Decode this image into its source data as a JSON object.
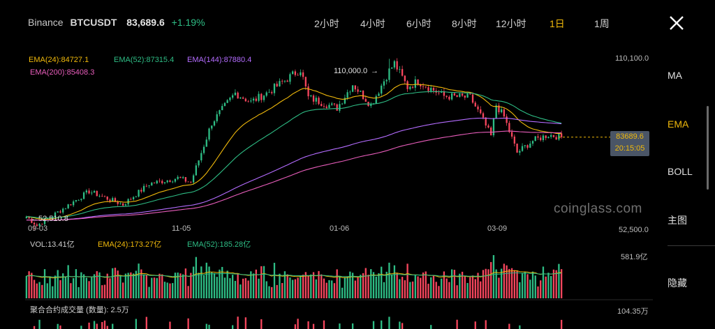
{
  "header": {
    "exchange": "Binance",
    "pair": "BTCUSDT",
    "price": "83,689.6",
    "change": "+1.19%",
    "intervals": [
      {
        "label": "2小时",
        "active": false
      },
      {
        "label": "4小时",
        "active": false
      },
      {
        "label": "6小时",
        "active": false
      },
      {
        "label": "8小时",
        "active": false
      },
      {
        "label": "12小时",
        "active": false
      },
      {
        "label": "1日",
        "active": true
      },
      {
        "label": "1周",
        "active": false
      }
    ],
    "close_icon": "close-icon"
  },
  "main_legend": {
    "ema24": "EMA(24):84727.1",
    "ema52": "EMA(52):87315.4",
    "ema144": "EMA(144):87880.4",
    "ema200": "EMA(200):85408.3"
  },
  "price_axis": {
    "top": "110,100.0",
    "bottom": "52,500.0"
  },
  "annotations": {
    "high": "110,000.0",
    "low": "52,510.8"
  },
  "last_price": {
    "price": "83689.6",
    "countdown": "20:15:05"
  },
  "date_labels": [
    "09-03",
    "11-05",
    "01-06",
    "03-09"
  ],
  "watermark": "coinglass.com",
  "volume_legend": {
    "vol": "VOL:13.41亿",
    "ema24": "EMA(24):173.27亿",
    "ema52": "EMA(52):185.28亿",
    "axis_top": "581.9亿"
  },
  "oi_legend": {
    "label": "聚合合约成交量 (数量): 2.5万",
    "axis": "104.35万"
  },
  "side_menu": [
    {
      "label": "MA",
      "active": false
    },
    {
      "label": "EMA",
      "active": true
    },
    {
      "label": "BOLL",
      "active": false
    },
    {
      "label": "主图",
      "active": false
    },
    {
      "label": "隐藏",
      "active": false
    }
  ],
  "colors": {
    "up": "#2ebd85",
    "down": "#f6465d",
    "ema24": "#f0b90b",
    "ema52": "#2ebd85",
    "ema144": "#b46cff",
    "ema200": "#e85dbb",
    "accent": "#f0b90b"
  },
  "chart_data": {
    "type": "candlestick",
    "x_start": "09-03",
    "x_end": "03-27",
    "ylim": [
      52500,
      110100
    ],
    "close_anchors": [
      {
        "date": "09-03",
        "close": 57000
      },
      {
        "date": "09-07",
        "close": 54000
      },
      {
        "date": "09-15",
        "close": 58500
      },
      {
        "date": "09-27",
        "close": 65500
      },
      {
        "date": "10-10",
        "close": 61000
      },
      {
        "date": "10-20",
        "close": 68000
      },
      {
        "date": "10-31",
        "close": 70000
      },
      {
        "date": "11-05",
        "close": 68500
      },
      {
        "date": "11-13",
        "close": 88500
      },
      {
        "date": "11-22",
        "close": 98500
      },
      {
        "date": "11-28",
        "close": 95500
      },
      {
        "date": "12-05",
        "close": 99000
      },
      {
        "date": "12-17",
        "close": 106500
      },
      {
        "date": "12-20",
        "close": 97000
      },
      {
        "date": "12-31",
        "close": 93500
      },
      {
        "date": "01-06",
        "close": 101500
      },
      {
        "date": "01-13",
        "close": 94500
      },
      {
        "date": "01-20",
        "close": 106000
      },
      {
        "date": "01-22",
        "close": 108500
      },
      {
        "date": "01-27",
        "close": 100500
      },
      {
        "date": "01-31",
        "close": 102500
      },
      {
        "date": "02-10",
        "close": 97500
      },
      {
        "date": "02-20",
        "close": 97000
      },
      {
        "date": "02-24",
        "close": 91000
      },
      {
        "date": "02-28",
        "close": 84000
      },
      {
        "date": "03-02",
        "close": 94500
      },
      {
        "date": "03-05",
        "close": 90500
      },
      {
        "date": "03-10",
        "close": 78500
      },
      {
        "date": "03-16",
        "close": 82500
      },
      {
        "date": "03-22",
        "close": 84500
      },
      {
        "date": "03-27",
        "close": 83700
      }
    ],
    "high_annotation": {
      "date": "01-20",
      "value": 110000
    },
    "low_annotation": {
      "date": "09-06",
      "value": 52510.8
    },
    "last_price": 83689.6,
    "ema_periods": [
      24,
      52,
      144,
      200
    ],
    "volume_panel": {
      "ylim_top_label": "581.9亿",
      "ema_periods": [
        24,
        52
      ]
    }
  }
}
